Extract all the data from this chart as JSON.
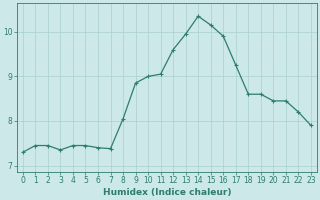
{
  "x": [
    0,
    1,
    2,
    3,
    4,
    5,
    6,
    7,
    8,
    9,
    10,
    11,
    12,
    13,
    14,
    15,
    16,
    17,
    18,
    19,
    20,
    21,
    22,
    23
  ],
  "y": [
    7.3,
    7.45,
    7.45,
    7.35,
    7.45,
    7.45,
    7.4,
    7.38,
    8.05,
    8.85,
    9.0,
    9.05,
    9.6,
    9.95,
    10.35,
    10.15,
    9.9,
    9.25,
    8.6,
    8.6,
    8.45,
    8.45,
    8.2,
    7.9
  ],
  "line_color": "#2e7d6e",
  "marker": "+",
  "marker_size": 3.0,
  "line_width": 0.9,
  "bg_color": "#cce8e8",
  "grid_color": "#aacfcf",
  "xlabel": "Humidex (Indice chaleur)",
  "xlim": [
    -0.5,
    23.5
  ],
  "ylim": [
    6.85,
    10.65
  ],
  "yticks": [
    7,
    8,
    9,
    10
  ],
  "xticks": [
    0,
    1,
    2,
    3,
    4,
    5,
    6,
    7,
    8,
    9,
    10,
    11,
    12,
    13,
    14,
    15,
    16,
    17,
    18,
    19,
    20,
    21,
    22,
    23
  ],
  "tick_labelsize": 5.5,
  "xlabel_fontsize": 6.5,
  "axis_color": "#2e7d6e"
}
